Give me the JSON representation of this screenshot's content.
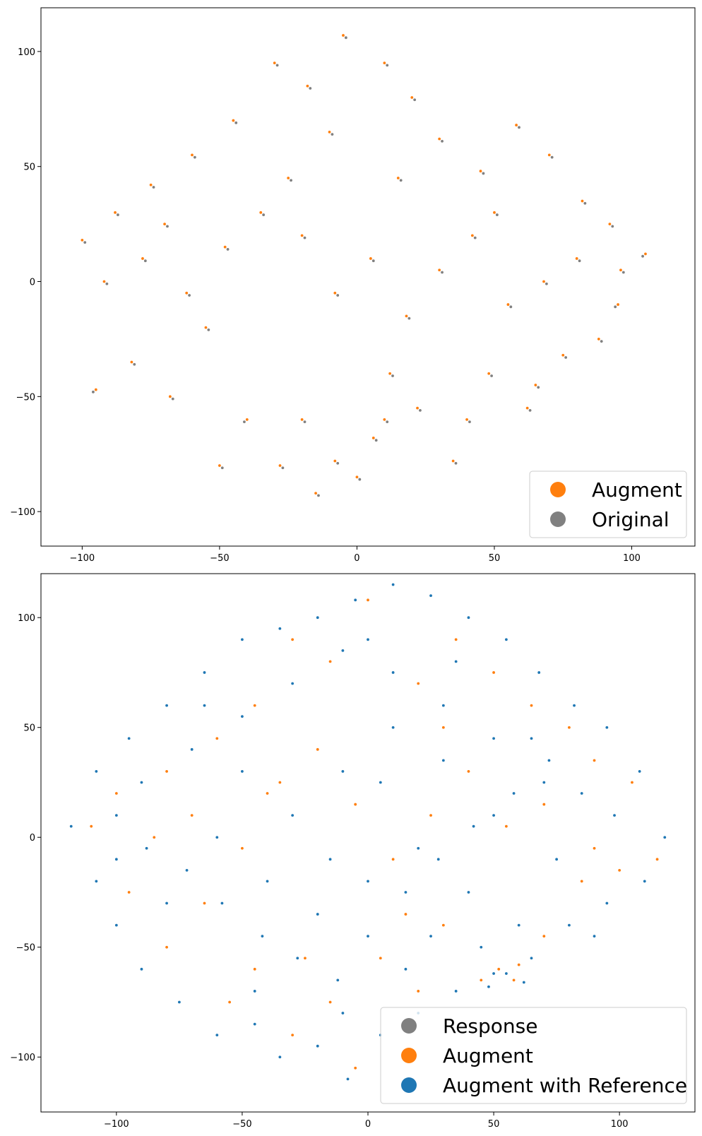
{
  "chart_data": [
    {
      "type": "scatter",
      "title": "",
      "xlabel": "",
      "ylabel": "",
      "xlim": [
        -115,
        123
      ],
      "ylim": [
        -115,
        119
      ],
      "xticks": [
        -100,
        -50,
        0,
        50,
        100
      ],
      "yticks": [
        -100,
        -50,
        0,
        50,
        100
      ],
      "grid": false,
      "legend_position": "bottom-right",
      "series": [
        {
          "name": "Augment",
          "color": "#ff7f0e",
          "points": [
            [
              -95,
              -47
            ],
            [
              -82,
              -35
            ],
            [
              -68,
              -50
            ],
            [
              -55,
              -20
            ],
            [
              -40,
              -60
            ],
            [
              -28,
              -80
            ],
            [
              -15,
              -92
            ],
            [
              -8,
              -78
            ],
            [
              0,
              -85
            ],
            [
              6,
              -68
            ],
            [
              12,
              -40
            ],
            [
              22,
              -55
            ],
            [
              35,
              -78
            ],
            [
              48,
              -40
            ],
            [
              62,
              -55
            ],
            [
              75,
              -32
            ],
            [
              88,
              -25
            ],
            [
              96,
              5
            ],
            [
              105,
              12
            ],
            [
              92,
              25
            ],
            [
              82,
              35
            ],
            [
              70,
              55
            ],
            [
              58,
              68
            ],
            [
              45,
              48
            ],
            [
              30,
              62
            ],
            [
              20,
              80
            ],
            [
              10,
              95
            ],
            [
              -5,
              107
            ],
            [
              -18,
              85
            ],
            [
              -30,
              95
            ],
            [
              -45,
              70
            ],
            [
              -60,
              55
            ],
            [
              -75,
              42
            ],
            [
              -88,
              30
            ],
            [
              -100,
              18
            ],
            [
              -92,
              0
            ],
            [
              -78,
              10
            ],
            [
              -62,
              -5
            ],
            [
              -48,
              15
            ],
            [
              -35,
              30
            ],
            [
              -20,
              20
            ],
            [
              -8,
              -5
            ],
            [
              5,
              10
            ],
            [
              18,
              -15
            ],
            [
              30,
              5
            ],
            [
              42,
              20
            ],
            [
              55,
              -10
            ],
            [
              68,
              0
            ],
            [
              80,
              10
            ],
            [
              95,
              -10
            ],
            [
              -50,
              -80
            ],
            [
              -20,
              -60
            ],
            [
              10,
              -60
            ],
            [
              40,
              -60
            ],
            [
              65,
              -45
            ],
            [
              -70,
              25
            ],
            [
              -25,
              45
            ],
            [
              15,
              45
            ],
            [
              50,
              30
            ],
            [
              -10,
              65
            ]
          ]
        },
        {
          "name": "Original",
          "color": "#808080",
          "points": [
            [
              -96,
              -48
            ],
            [
              -81,
              -36
            ],
            [
              -67,
              -51
            ],
            [
              -54,
              -21
            ],
            [
              -41,
              -61
            ],
            [
              -27,
              -81
            ],
            [
              -14,
              -93
            ],
            [
              -7,
              -79
            ],
            [
              1,
              -86
            ],
            [
              7,
              -69
            ],
            [
              13,
              -41
            ],
            [
              23,
              -56
            ],
            [
              36,
              -79
            ],
            [
              49,
              -41
            ],
            [
              63,
              -56
            ],
            [
              76,
              -33
            ],
            [
              89,
              -26
            ],
            [
              97,
              4
            ],
            [
              104,
              11
            ],
            [
              93,
              24
            ],
            [
              83,
              34
            ],
            [
              71,
              54
            ],
            [
              59,
              67
            ],
            [
              46,
              47
            ],
            [
              31,
              61
            ],
            [
              21,
              79
            ],
            [
              11,
              94
            ],
            [
              -4,
              106
            ],
            [
              -17,
              84
            ],
            [
              -29,
              94
            ],
            [
              -44,
              69
            ],
            [
              -59,
              54
            ],
            [
              -74,
              41
            ],
            [
              -87,
              29
            ],
            [
              -99,
              17
            ],
            [
              -91,
              -1
            ],
            [
              -77,
              9
            ],
            [
              -61,
              -6
            ],
            [
              -47,
              14
            ],
            [
              -34,
              29
            ],
            [
              -19,
              19
            ],
            [
              -7,
              -6
            ],
            [
              6,
              9
            ],
            [
              19,
              -16
            ],
            [
              31,
              4
            ],
            [
              43,
              19
            ],
            [
              56,
              -11
            ],
            [
              69,
              -1
            ],
            [
              81,
              9
            ],
            [
              94,
              -11
            ],
            [
              -49,
              -81
            ],
            [
              -19,
              -61
            ],
            [
              11,
              -61
            ],
            [
              41,
              -61
            ],
            [
              66,
              -46
            ],
            [
              -69,
              24
            ],
            [
              -24,
              44
            ],
            [
              16,
              44
            ],
            [
              51,
              29
            ],
            [
              -9,
              64
            ]
          ]
        }
      ]
    },
    {
      "type": "scatter",
      "title": "",
      "xlabel": "",
      "ylabel": "",
      "xlim": [
        -130,
        130
      ],
      "ylim": [
        -125,
        120
      ],
      "xticks": [
        -100,
        -50,
        0,
        50,
        100
      ],
      "yticks": [
        -100,
        -50,
        0,
        50,
        100
      ],
      "grid": false,
      "legend_position": "bottom-right",
      "series": [
        {
          "name": "Response",
          "color": "#808080",
          "points": []
        },
        {
          "name": "Augment",
          "color": "#ff7f0e",
          "points": [
            [
              -110,
              5
            ],
            [
              -95,
              -25
            ],
            [
              -80,
              -50
            ],
            [
              -65,
              -30
            ],
            [
              -45,
              -60
            ],
            [
              -30,
              -90
            ],
            [
              -15,
              -75
            ],
            [
              -5,
              -105
            ],
            [
              5,
              -55
            ],
            [
              15,
              -35
            ],
            [
              30,
              -40
            ],
            [
              45,
              -65
            ],
            [
              52,
              -60
            ],
            [
              60,
              -58
            ],
            [
              70,
              -45
            ],
            [
              85,
              -20
            ],
            [
              100,
              -15
            ],
            [
              115,
              -10
            ],
            [
              105,
              25
            ],
            [
              90,
              35
            ],
            [
              80,
              50
            ],
            [
              65,
              60
            ],
            [
              50,
              75
            ],
            [
              35,
              90
            ],
            [
              20,
              70
            ],
            [
              0,
              108
            ],
            [
              -15,
              80
            ],
            [
              -30,
              90
            ],
            [
              -45,
              60
            ],
            [
              -60,
              45
            ],
            [
              -80,
              30
            ],
            [
              -100,
              20
            ],
            [
              -85,
              0
            ],
            [
              -70,
              10
            ],
            [
              -50,
              -5
            ],
            [
              -35,
              25
            ],
            [
              -20,
              40
            ],
            [
              -5,
              15
            ],
            [
              10,
              -10
            ],
            [
              25,
              10
            ],
            [
              40,
              30
            ],
            [
              55,
              5
            ],
            [
              70,
              15
            ],
            [
              90,
              -5
            ],
            [
              -55,
              -75
            ],
            [
              -25,
              -55
            ],
            [
              20,
              -70
            ],
            [
              58,
              -65
            ],
            [
              -40,
              20
            ],
            [
              30,
              50
            ]
          ]
        },
        {
          "name": "Augment with Reference",
          "color": "#1f77b4",
          "points": [
            [
              -118,
              5
            ],
            [
              -108,
              -20
            ],
            [
              -100,
              -40
            ],
            [
              -90,
              -60
            ],
            [
              -75,
              -75
            ],
            [
              -60,
              -90
            ],
            [
              -45,
              -85
            ],
            [
              -35,
              -100
            ],
            [
              -20,
              -95
            ],
            [
              -8,
              -110
            ],
            [
              5,
              -90
            ],
            [
              20,
              -80
            ],
            [
              35,
              -70
            ],
            [
              50,
              -62
            ],
            [
              65,
              -55
            ],
            [
              80,
              -40
            ],
            [
              95,
              -30
            ],
            [
              110,
              -20
            ],
            [
              118,
              0
            ],
            [
              108,
              30
            ],
            [
              95,
              50
            ],
            [
              82,
              60
            ],
            [
              68,
              75
            ],
            [
              55,
              90
            ],
            [
              40,
              100
            ],
            [
              25,
              110
            ],
            [
              10,
              115
            ],
            [
              -5,
              108
            ],
            [
              -20,
              100
            ],
            [
              -35,
              95
            ],
            [
              -50,
              90
            ],
            [
              -65,
              75
            ],
            [
              -80,
              60
            ],
            [
              -95,
              45
            ],
            [
              -108,
              30
            ],
            [
              -100,
              10
            ],
            [
              -88,
              -5
            ],
            [
              -72,
              -15
            ],
            [
              -58,
              -30
            ],
            [
              -42,
              -45
            ],
            [
              -28,
              -55
            ],
            [
              -12,
              -65
            ],
            [
              0,
              -45
            ],
            [
              15,
              -25
            ],
            [
              28,
              -10
            ],
            [
              42,
              5
            ],
            [
              58,
              20
            ],
            [
              72,
              35
            ],
            [
              85,
              20
            ],
            [
              98,
              10
            ],
            [
              -90,
              25
            ],
            [
              -70,
              40
            ],
            [
              -50,
              55
            ],
            [
              -30,
              70
            ],
            [
              -10,
              85
            ],
            [
              10,
              75
            ],
            [
              30,
              60
            ],
            [
              50,
              45
            ],
            [
              70,
              25
            ],
            [
              -60,
              0
            ],
            [
              -40,
              -20
            ],
            [
              -20,
              -35
            ],
            [
              0,
              -20
            ],
            [
              20,
              -5
            ],
            [
              40,
              -25
            ],
            [
              60,
              -40
            ],
            [
              -30,
              10
            ],
            [
              -10,
              30
            ],
            [
              10,
              50
            ],
            [
              30,
              35
            ],
            [
              50,
              10
            ],
            [
              -50,
              30
            ],
            [
              -15,
              -10
            ],
            [
              5,
              25
            ],
            [
              25,
              -45
            ],
            [
              45,
              -50
            ],
            [
              48,
              -68
            ],
            [
              55,
              -62
            ],
            [
              62,
              -66
            ],
            [
              -80,
              -30
            ],
            [
              -45,
              -70
            ],
            [
              -10,
              -80
            ],
            [
              15,
              -60
            ],
            [
              75,
              -10
            ],
            [
              90,
              -45
            ],
            [
              -100,
              -10
            ],
            [
              -65,
              60
            ],
            [
              0,
              90
            ],
            [
              35,
              80
            ],
            [
              65,
              45
            ]
          ]
        }
      ]
    }
  ]
}
